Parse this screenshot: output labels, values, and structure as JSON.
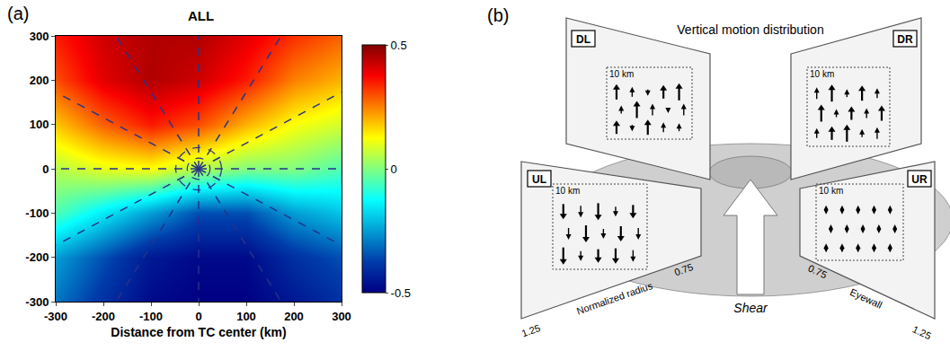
{
  "chart_data": {
    "panel_label": "(a)",
    "type": "heatmap",
    "title": "ALL",
    "x_label": "Distance from TC center (km)",
    "x": [
      -300,
      -200,
      -100,
      0,
      100,
      200,
      300
    ],
    "y": [
      -300,
      -200,
      -100,
      0,
      100,
      200,
      300
    ],
    "cells": [
      [
        -0.3,
        -0.4,
        -0.48,
        -0.5,
        -0.5,
        -0.45,
        -0.4
      ],
      [
        -0.25,
        -0.35,
        -0.45,
        -0.48,
        -0.48,
        -0.4,
        -0.35
      ],
      [
        -0.05,
        -0.15,
        -0.25,
        -0.35,
        -0.35,
        -0.25,
        -0.2
      ],
      [
        0.05,
        0.1,
        0.12,
        0.05,
        0,
        0,
        -0.05
      ],
      [
        0.18,
        0.28,
        0.35,
        0.3,
        0.2,
        0.12,
        0.08
      ],
      [
        0.3,
        0.4,
        0.45,
        0.42,
        0.35,
        0.25,
        0.2
      ],
      [
        0.35,
        0.42,
        0.45,
        0.45,
        0.4,
        0.33,
        0.28
      ]
    ],
    "xlim": [
      -300,
      300
    ],
    "ylim": [
      -300,
      300
    ],
    "xticks": [
      -300,
      -200,
      -100,
      0,
      100,
      200,
      300
    ],
    "yticks": [
      -300,
      -200,
      -100,
      0,
      100,
      200,
      300
    ],
    "colorbar": {
      "range": [
        -0.5,
        0.5
      ],
      "ticks": [
        -0.5,
        0,
        0.5
      ]
    }
  },
  "diagram": {
    "panel_label": "(b)",
    "title": "Vertical motion distribution",
    "quadrants": [
      {
        "label": "DL",
        "height_label": "10 km"
      },
      {
        "label": "DR",
        "height_label": "10 km"
      },
      {
        "label": "UL",
        "height_label": "10 km"
      },
      {
        "label": "UR",
        "height_label": "10 km"
      }
    ],
    "shear_label": "Shear",
    "radius_axis": {
      "label": "Normalized radius",
      "ticks": [
        "0.75",
        "1.25"
      ]
    },
    "eyewall_axis": {
      "label": "Eyewall",
      "ticks": [
        "0.75",
        "1.25"
      ]
    }
  }
}
